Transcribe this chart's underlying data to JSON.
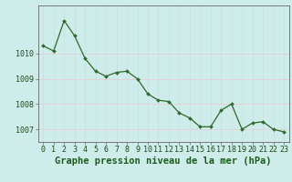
{
  "x": [
    0,
    1,
    2,
    3,
    4,
    5,
    6,
    7,
    8,
    9,
    10,
    11,
    12,
    13,
    14,
    15,
    16,
    17,
    18,
    19,
    20,
    21,
    22,
    23
  ],
  "y": [
    1010.3,
    1010.1,
    1011.3,
    1010.7,
    1009.8,
    1009.3,
    1009.1,
    1009.25,
    1009.3,
    1009.0,
    1008.4,
    1008.15,
    1008.1,
    1007.65,
    1007.45,
    1007.1,
    1007.1,
    1007.75,
    1008.0,
    1007.0,
    1007.25,
    1007.3,
    1007.0,
    1006.9
  ],
  "line_color": "#2d6a2d",
  "marker": "D",
  "marker_size": 2.0,
  "line_width": 0.9,
  "background_color": "#ceecea",
  "grid_color_vertical": "#c8e0dc",
  "grid_color_horizontal": "#e8c8d0",
  "xlabel": "Graphe pression niveau de la mer (hPa)",
  "xlabel_fontsize": 7.5,
  "ylim": [
    1006.5,
    1011.9
  ],
  "xlim": [
    -0.5,
    23.5
  ],
  "yticks": [
    1007,
    1008,
    1009,
    1010
  ],
  "xticks": [
    0,
    1,
    2,
    3,
    4,
    5,
    6,
    7,
    8,
    9,
    10,
    11,
    12,
    13,
    14,
    15,
    16,
    17,
    18,
    19,
    20,
    21,
    22,
    23
  ],
  "tick_fontsize": 6.0,
  "axis_color": "#666666"
}
